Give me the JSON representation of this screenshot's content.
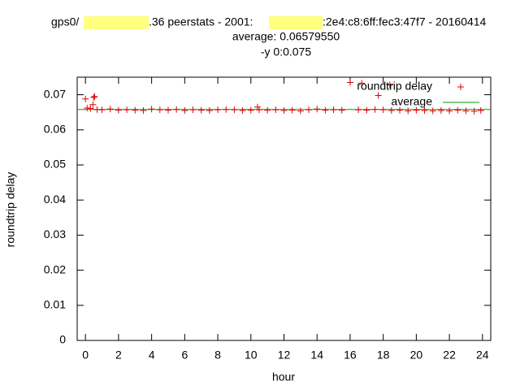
{
  "chart_data": {
    "type": "scatter",
    "title_parts": [
      "gps0/",
      ".36 peerstats - 2001:",
      ":2e4:c8:6ff:fec3:47f7 - 20160414"
    ],
    "subtitle": "average: 0.06579550",
    "subtitle2": "-y 0:0.075",
    "x_label": "hour",
    "y_label": "roundtrip delay",
    "xlim": [
      -0.5,
      24.5
    ],
    "ylim": [
      0,
      0.075
    ],
    "xticks": [
      0,
      2,
      4,
      6,
      8,
      10,
      12,
      14,
      16,
      18,
      20,
      22,
      24
    ],
    "yticks": [
      0,
      0.01,
      0.02,
      0.03,
      0.04,
      0.05,
      0.06,
      0.07
    ],
    "legend": "top-right",
    "series": [
      {
        "name": "roundtrip delay",
        "color": "#e00000",
        "x": [
          0.0,
          0.1,
          0.3,
          0.45,
          0.5,
          0.55,
          0.7,
          1.0,
          1.5,
          2.0,
          2.5,
          3.0,
          3.5,
          4.0,
          4.5,
          5.0,
          5.5,
          6.0,
          6.5,
          7.0,
          7.5,
          8.0,
          8.5,
          9.0,
          9.5,
          10.0,
          10.4,
          10.5,
          11.0,
          11.5,
          12.0,
          12.5,
          13.0,
          13.5,
          14.0,
          14.5,
          15.0,
          15.5,
          16.0,
          16.5,
          16.7,
          17.0,
          17.5,
          17.7,
          18.0,
          18.4,
          18.5,
          19.0,
          19.5,
          20.0,
          20.5,
          21.0,
          21.5,
          22.0,
          22.5,
          23.0,
          23.5,
          23.9
        ],
        "y": [
          0.0688,
          0.0662,
          0.0661,
          0.0672,
          0.0692,
          0.0695,
          0.0658,
          0.0657,
          0.0659,
          0.0656,
          0.0657,
          0.0656,
          0.0655,
          0.0659,
          0.0657,
          0.0656,
          0.0658,
          0.0655,
          0.0657,
          0.0656,
          0.0655,
          0.0657,
          0.0658,
          0.0657,
          0.0655,
          0.0656,
          0.0665,
          0.0657,
          0.0656,
          0.0657,
          0.0655,
          0.0656,
          0.0654,
          0.0657,
          0.0659,
          0.0656,
          0.0657,
          0.0656,
          0.0735,
          0.0657,
          0.0733,
          0.0656,
          0.0658,
          0.0698,
          0.0657,
          0.0728,
          0.0655,
          0.0656,
          0.0654,
          0.0656,
          0.0655,
          0.0654,
          0.0655,
          0.0654,
          0.0656,
          0.0654,
          0.0653,
          0.0655
        ]
      },
      {
        "name": "average",
        "color": "#00a000",
        "value": 0.0657955
      }
    ]
  }
}
